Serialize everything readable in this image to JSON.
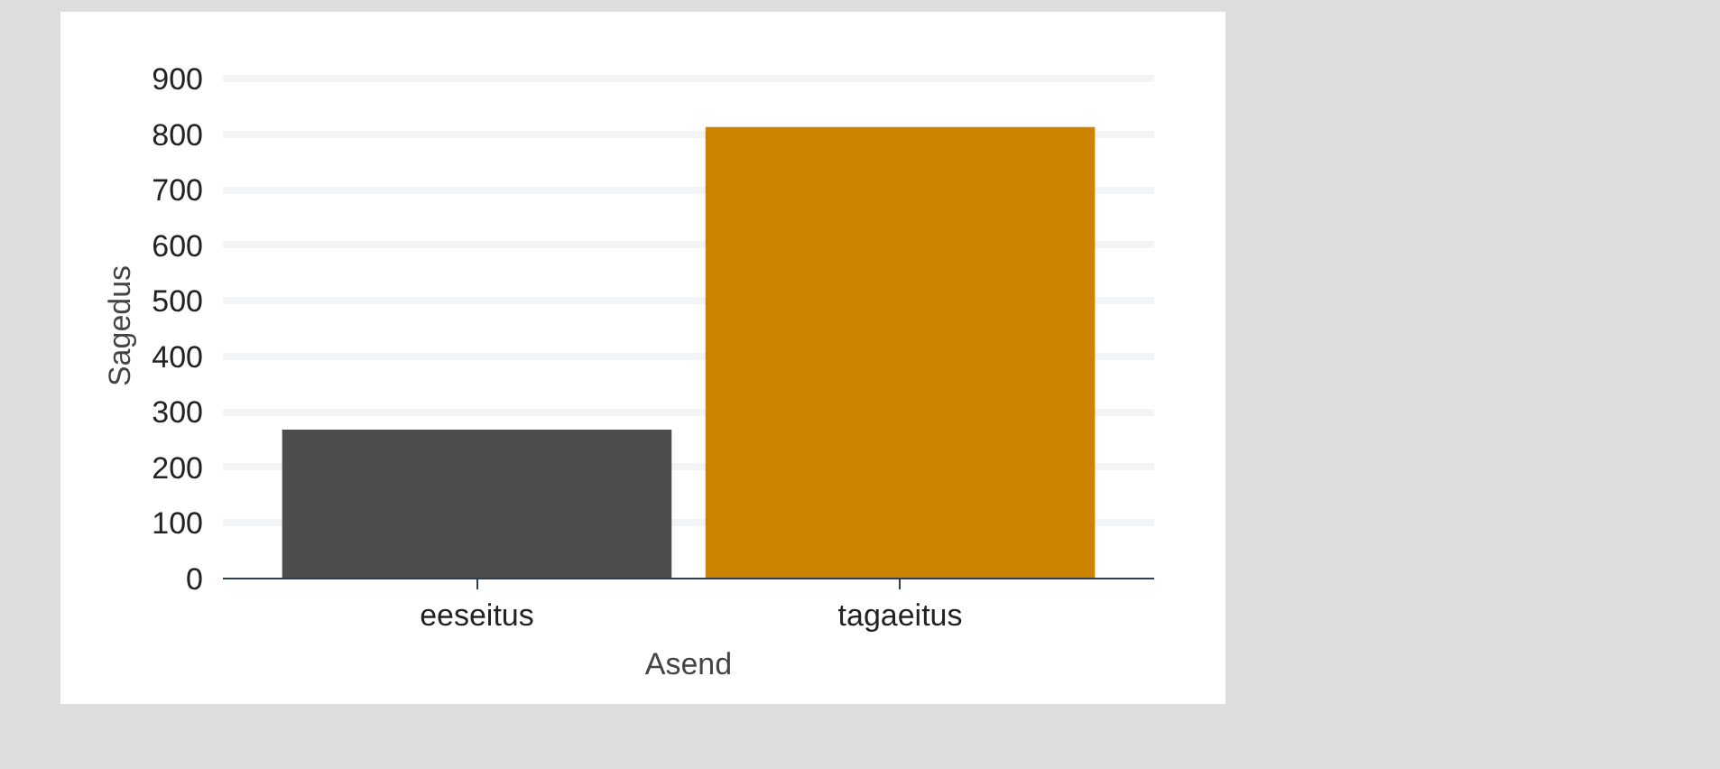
{
  "chart_data": {
    "type": "bar",
    "xlabel": "Asend",
    "ylabel": "Sagedus",
    "categories": [
      "eeseitus",
      "tagaeitus"
    ],
    "values": [
      268,
      813
    ],
    "colors": [
      "#4d4d4d",
      "#cc8400"
    ],
    "ylim": [
      0,
      910
    ],
    "yticks": [
      0,
      100,
      200,
      300,
      400,
      500,
      600,
      700,
      800,
      900
    ],
    "grid": "y"
  }
}
